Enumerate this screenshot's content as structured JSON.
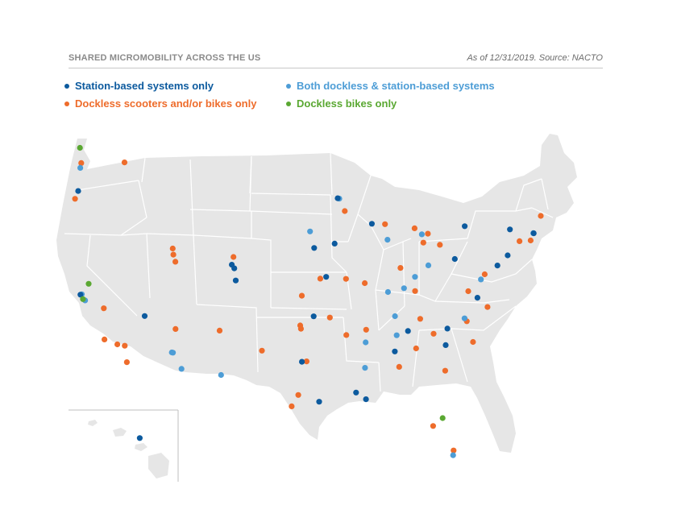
{
  "header": {
    "title": "SHARED MICROMOBILITY ACROSS THE US",
    "source": "As of 12/31/2019. Source: NACTO"
  },
  "legend": [
    {
      "label": "Station-based  systems only",
      "color": "#0c5a9e"
    },
    {
      "label": "Dockless scooters and/or bikes only",
      "color": "#ee6c2b"
    },
    {
      "label": "Both dockless & station-based systems",
      "color": "#4d9dd6"
    },
    {
      "label": "Dockless bikes only",
      "color": "#5aa832"
    }
  ],
  "colors": {
    "land": "#e6e6e6",
    "state_border": "#ffffff",
    "station": "#0c5a9e",
    "dockless": "#ee6c2b",
    "both": "#4d9dd6",
    "bikes": "#5aa832"
  },
  "map_data": {
    "station": [
      [
        "Portland",
        45.52,
        -122.68
      ],
      [
        "San Francisco",
        37.77,
        -122.42
      ],
      [
        "Denver",
        39.74,
        -104.99
      ],
      [
        "Boulder",
        40.01,
        -105.27
      ],
      [
        "Colorado Springs",
        38.83,
        -104.82
      ],
      [
        "Las Vegas",
        36.17,
        -115.14
      ],
      [
        "Minneapolis",
        44.98,
        -93.27
      ],
      [
        "Des Moines",
        41.59,
        -93.62
      ],
      [
        "Omaha",
        41.26,
        -95.94
      ],
      [
        "Kansas City",
        39.1,
        -94.58
      ],
      [
        "Madison",
        43.07,
        -89.4
      ],
      [
        "Tulsa",
        36.15,
        -95.99
      ],
      [
        "Fort Worth",
        32.75,
        -97.33
      ],
      [
        "Houston",
        29.76,
        -95.37
      ],
      [
        "Baton Rouge",
        30.45,
        -91.19
      ],
      [
        "New Orleans",
        29.95,
        -90.07
      ],
      [
        "Birmingham",
        33.52,
        -86.8
      ],
      [
        "Chattanooga",
        35.05,
        -85.31
      ],
      [
        "Charlotte",
        35.23,
        -80.84
      ],
      [
        "Columbia",
        34.0,
        -81.03
      ],
      [
        "Richmond",
        37.54,
        -77.44
      ],
      [
        "Pittsburgh",
        40.44,
        -80.0
      ],
      [
        "Buffalo",
        42.89,
        -78.88
      ],
      [
        "Albany",
        42.65,
        -73.76
      ],
      [
        "Boston",
        42.36,
        -71.06
      ],
      [
        "New York",
        40.71,
        -74.01
      ],
      [
        "Philadelphia",
        39.95,
        -75.17
      ],
      [
        "Honolulu",
        21.31,
        -157.86
      ]
    ],
    "dockless": [
      [
        "Seattle",
        47.61,
        -122.33
      ],
      [
        "Salem",
        44.94,
        -123.03
      ],
      [
        "Spokane",
        47.66,
        -117.43
      ],
      [
        "Salt Lake City",
        40.76,
        -111.89
      ],
      [
        "Provo",
        40.23,
        -111.66
      ],
      [
        "Ogden",
        41.22,
        -111.97
      ],
      [
        "Fort Collins",
        40.59,
        -105.08
      ],
      [
        "Fresno",
        36.75,
        -119.77
      ],
      [
        "Santa Barbara",
        34.42,
        -119.7
      ],
      [
        "Los Angeles",
        34.05,
        -118.24
      ],
      [
        "Riverside",
        33.95,
        -117.4
      ],
      [
        "San Diego",
        32.72,
        -117.16
      ],
      [
        "Flagstaff",
        35.2,
        -111.65
      ],
      [
        "Albuquerque",
        35.08,
        -106.65
      ],
      [
        "Lubbock",
        33.58,
        -101.86
      ],
      [
        "Wichita",
        37.69,
        -97.34
      ],
      [
        "Oklahoma City",
        35.47,
        -97.52
      ],
      [
        "Norman",
        35.22,
        -97.44
      ],
      [
        "Lawrence",
        38.97,
        -95.24
      ],
      [
        "Columbia MO",
        38.95,
        -92.33
      ],
      [
        "St. Louis",
        38.63,
        -90.2
      ],
      [
        "Fayetteville",
        36.06,
        -94.16
      ],
      [
        "Little Rock",
        34.75,
        -92.29
      ],
      [
        "Dallas",
        32.78,
        -96.8
      ],
      [
        "Austin",
        30.27,
        -97.74
      ],
      [
        "San Antonio",
        29.42,
        -98.49
      ],
      [
        "Milwaukee",
        43.04,
        -87.91
      ],
      [
        "Lansing",
        42.73,
        -84.56
      ],
      [
        "Detroit",
        42.33,
        -83.05
      ],
      [
        "Toledo",
        41.66,
        -83.56
      ],
      [
        "Cleveland",
        41.5,
        -81.69
      ],
      [
        "Indianapolis",
        39.77,
        -86.16
      ],
      [
        "Lexington",
        38.04,
        -84.5
      ],
      [
        "Knoxville",
        35.96,
        -83.92
      ],
      [
        "Atlanta",
        33.75,
        -84.39
      ],
      [
        "Savannah",
        32.08,
        -81.09
      ],
      [
        "Tampa",
        27.95,
        -82.46
      ],
      [
        "Fort Lauderdale",
        26.12,
        -80.14
      ],
      [
        "Raleigh",
        35.78,
        -78.64
      ],
      [
        "Greenville",
        34.85,
        -82.4
      ],
      [
        "Wilmington",
        34.23,
        -77.94
      ],
      [
        "Norfolk",
        36.85,
        -76.29
      ],
      [
        "Charlottesville",
        38.03,
        -78.48
      ],
      [
        "Baltimore",
        39.29,
        -76.61
      ],
      [
        "Providence",
        41.82,
        -71.41
      ],
      [
        "Portland ME",
        43.66,
        -70.26
      ],
      [
        "Hartford",
        41.77,
        -72.67
      ],
      [
        "Montgomery",
        32.37,
        -86.3
      ],
      [
        "Memphis",
        35.15,
        -90.05
      ],
      [
        "Rochester MN",
        44.02,
        -92.47
      ]
    ],
    "both": [
      [
        "Tacoma",
        47.25,
        -122.44
      ],
      [
        "Oakland",
        37.8,
        -122.27
      ],
      [
        "San Jose",
        37.34,
        -121.89
      ],
      [
        "Phoenix",
        33.45,
        -112.07
      ],
      [
        "Tucson",
        32.22,
        -110.97
      ],
      [
        "El Paso",
        31.76,
        -106.49
      ],
      [
        "Chicago",
        41.88,
        -87.63
      ],
      [
        "Columbus",
        39.96,
        -83.0
      ],
      [
        "Cincinnati",
        39.1,
        -84.51
      ],
      [
        "Louisville",
        38.25,
        -85.76
      ],
      [
        "Nashville",
        36.16,
        -86.78
      ],
      [
        "Washington DC",
        38.91,
        -77.04
      ],
      [
        "Miami",
        25.76,
        -80.19
      ],
      [
        "St. Paul",
        44.95,
        -93.09
      ],
      [
        "Tempe",
        33.43,
        -111.94
      ],
      [
        "Sioux City",
        42.5,
        -96.4
      ],
      [
        "Evansville",
        37.97,
        -87.57
      ],
      [
        "Huntsville",
        34.73,
        -86.59
      ],
      [
        "Memphis South",
        34.2,
        -90.1
      ],
      [
        "Jackson",
        32.3,
        -90.18
      ],
      [
        "Durham",
        36.0,
        -78.9
      ],
      [
        "Ann Arbor",
        42.28,
        -83.74
      ],
      [
        "Boston Cambridge",
        42.37,
        -71.11
      ]
    ],
    "bikes": [
      [
        "Bellingham",
        48.75,
        -122.48
      ],
      [
        "Sacramento",
        38.58,
        -121.49
      ],
      [
        "Palo Alto",
        37.44,
        -122.14
      ],
      [
        "Orlando",
        28.54,
        -81.38
      ]
    ]
  }
}
